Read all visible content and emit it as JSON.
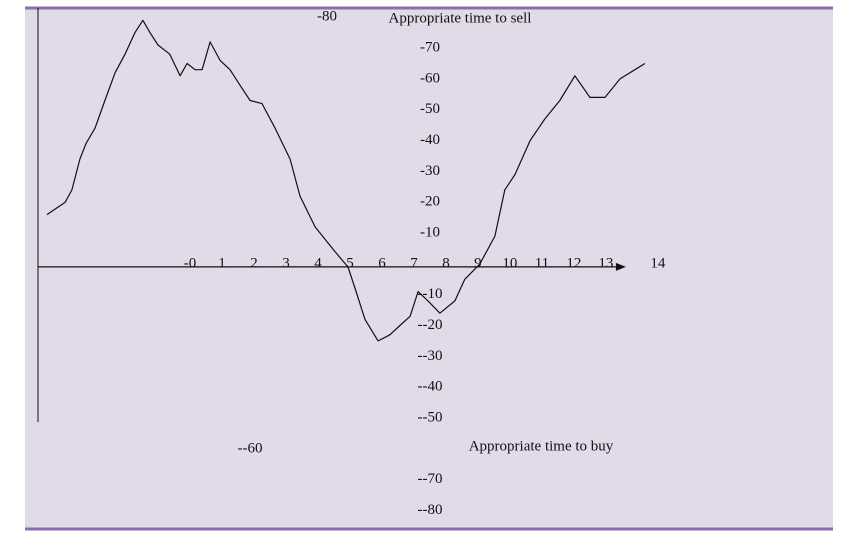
{
  "chart_data": {
    "type": "line",
    "annotations": [
      "Appropriate time to sell",
      "Appropriate time to buy"
    ],
    "x": [
      -4.47,
      -3.9,
      -3.69,
      -3.44,
      -3.25,
      -2.97,
      -2.66,
      -2.34,
      -2.03,
      -1.72,
      -1.47,
      -1.25,
      -1.0,
      -0.63,
      -0.31,
      -0.09,
      0.16,
      0.38,
      0.63,
      0.94,
      1.25,
      1.56,
      1.88,
      2.25,
      2.66,
      3.13,
      3.44,
      3.91,
      4.53,
      4.94,
      5.16,
      5.47,
      5.88,
      6.25,
      6.56,
      6.88,
      7.13,
      7.44,
      7.81,
      8.28,
      8.59,
      9.06,
      9.53,
      9.84,
      10.16,
      10.63,
      11.09,
      11.56,
      12.03,
      12.5,
      12.97,
      13.44,
      14.22
    ],
    "series": [
      {
        "color": "#111111",
        "values": [
          16,
          20,
          24,
          34,
          39,
          44,
          53,
          62,
          68,
          75,
          79,
          75,
          71,
          68,
          61,
          65,
          63,
          63,
          72,
          66,
          63,
          58,
          53,
          52,
          44,
          34,
          22,
          12,
          4,
          -1,
          -8,
          -18,
          -25,
          -23,
          -20,
          -17,
          -9,
          -12,
          -16,
          -12,
          -5,
          0,
          9,
          24,
          29,
          40,
          47,
          53,
          61,
          54,
          54,
          60,
          65
        ]
      }
    ],
    "xlim": [
      -4.75,
      20.16
    ],
    "ylim": [
      -86,
      83
    ],
    "xticks": [
      {
        "value": 0,
        "label": "-0"
      },
      1,
      2,
      3,
      4,
      5,
      6,
      7,
      8,
      9,
      10,
      11,
      12,
      13,
      14
    ],
    "yticks": [
      {
        "value": 80,
        "label": "-80"
      },
      {
        "value": 70,
        "label": "-70"
      },
      {
        "value": 60,
        "label": "-60"
      },
      {
        "value": 50,
        "label": "-50"
      },
      {
        "value": 40,
        "label": "-40"
      },
      {
        "value": 30,
        "label": "-30"
      },
      {
        "value": 20,
        "label": "-20"
      },
      {
        "value": 10,
        "label": "-10"
      },
      {
        "value": -10,
        "label": "--10"
      },
      {
        "value": -20,
        "label": "--20"
      },
      {
        "value": -30,
        "label": "--30"
      },
      {
        "value": -40,
        "label": "--40"
      },
      {
        "value": -50,
        "label": "--50"
      },
      {
        "value": -60,
        "label": "--60"
      },
      {
        "value": -70,
        "label": "--70"
      },
      {
        "value": -80,
        "label": "--80"
      }
    ]
  }
}
